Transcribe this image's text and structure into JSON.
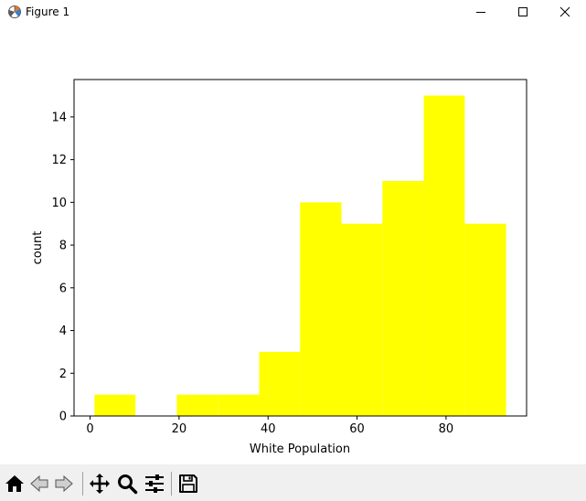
{
  "window": {
    "title": "Figure 1",
    "app_icon": "matplotlib-icon",
    "controls": [
      "minimize-icon",
      "maximize-icon",
      "close-icon"
    ]
  },
  "toolbar": {
    "tools": [
      {
        "name": "home-icon",
        "label": "Home"
      },
      {
        "name": "back-icon",
        "label": "Back"
      },
      {
        "name": "forward-icon",
        "label": "Forward"
      },
      {
        "name": "pan-icon",
        "label": "Pan"
      },
      {
        "name": "zoom-icon",
        "label": "Zoom"
      },
      {
        "name": "configure-subplots-icon",
        "label": "Subplots"
      },
      {
        "name": "save-icon",
        "label": "Save"
      }
    ]
  },
  "chart_data": {
    "type": "bar",
    "title": "",
    "xlabel": "White Population",
    "ylabel": "count",
    "bar_color": "#ffff00",
    "bins": [
      {
        "x0": 1,
        "x1": 10.2,
        "count": 1
      },
      {
        "x0": 10.2,
        "x1": 19.5,
        "count": 0
      },
      {
        "x0": 19.5,
        "x1": 28.7,
        "count": 1
      },
      {
        "x0": 28.7,
        "x1": 38.0,
        "count": 1
      },
      {
        "x0": 38.0,
        "x1": 47.2,
        "count": 3
      },
      {
        "x0": 47.2,
        "x1": 56.5,
        "count": 10
      },
      {
        "x0": 56.5,
        "x1": 65.7,
        "count": 9
      },
      {
        "x0": 65.7,
        "x1": 75.0,
        "count": 11
      },
      {
        "x0": 75.0,
        "x1": 84.2,
        "count": 15
      },
      {
        "x0": 84.2,
        "x1": 93.5,
        "count": 9
      }
    ],
    "xlim": [
      -3.6,
      98.1
    ],
    "ylim": [
      0,
      15.75
    ],
    "xticks": [
      0,
      20,
      40,
      60,
      80
    ],
    "xtick_labels": [
      "0",
      "20",
      "40",
      "60",
      "80"
    ],
    "yticks": [
      0,
      2,
      4,
      6,
      8,
      10,
      12,
      14
    ],
    "ytick_labels": [
      "0",
      "2",
      "4",
      "6",
      "8",
      "10",
      "12",
      "14"
    ],
    "grid": false
  }
}
